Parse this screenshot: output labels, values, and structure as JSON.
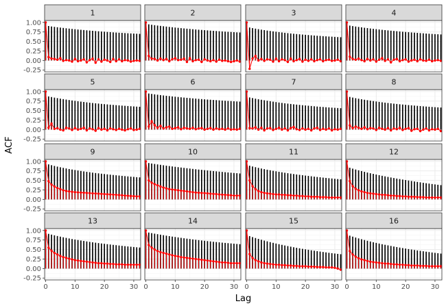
{
  "chart_data": {
    "type": "faceted-lollipop",
    "xlabel": "Lag",
    "ylabel": "ACF",
    "xlim": [
      0,
      32
    ],
    "ylim": [
      -0.3,
      1.05
    ],
    "x_ticks": [
      0,
      10,
      20,
      30
    ],
    "y_ticks": [
      -0.25,
      0,
      0.25,
      0.5,
      0.75,
      1
    ],
    "y_tick_labels": [
      "-0.25",
      "0.00",
      "0.25",
      "0.50",
      "0.75",
      "1.00"
    ],
    "x_tick_labels": [
      "0",
      "10",
      "20",
      "30"
    ],
    "grid": true,
    "colors": {
      "series_a": "#000000",
      "series_b": "#ff0000",
      "strip_bg": "#d9d9d9",
      "panel_border": "#333333",
      "grid_major": "#ebebeb",
      "grid_minor": "#f5f5f5"
    },
    "series_names": [
      "black",
      "red"
    ],
    "panels": [
      {
        "label": "1",
        "black": [
          1.0,
          0.906,
          0.894,
          0.883,
          0.873,
          0.864,
          0.855,
          0.846,
          0.838,
          0.83,
          0.822,
          0.814,
          0.807,
          0.8,
          0.793,
          0.786,
          0.78,
          0.773,
          0.767,
          0.761,
          0.756,
          0.75,
          0.745,
          0.739,
          0.734,
          0.729,
          0.725,
          0.72,
          0.715,
          0.711,
          0.707,
          0.703,
          0.699
        ],
        "red": [
          1.0,
          0.09,
          0.05,
          0.04,
          0.02,
          0.06,
          -0.01,
          0.01,
          0.0,
          -0.03,
          0.04,
          -0.02,
          0.0,
          0.03,
          -0.05,
          0.01,
          0.05,
          -0.06,
          0.03,
          -0.03,
          0.02,
          0.0,
          -0.04,
          0.04,
          -0.02,
          0.03,
          -0.02,
          0.01,
          0.0,
          -0.03,
          -0.01,
          0.0,
          -0.01
        ]
      },
      {
        "label": "2",
        "black": [
          1.0,
          0.95,
          0.939,
          0.928,
          0.918,
          0.909,
          0.9,
          0.891,
          0.882,
          0.874,
          0.865,
          0.858,
          0.85,
          0.843,
          0.836,
          0.829,
          0.822,
          0.815,
          0.809,
          0.803,
          0.797,
          0.791,
          0.785,
          0.779,
          0.774,
          0.768,
          0.763,
          0.758,
          0.753,
          0.749,
          0.744,
          0.739,
          0.735
        ],
        "red": [
          1.0,
          0.12,
          0.05,
          0.04,
          0.0,
          0.05,
          0.01,
          0.04,
          -0.02,
          0.03,
          0.06,
          0.01,
          0.02,
          0.05,
          -0.04,
          0.06,
          -0.02,
          0.01,
          0.02,
          -0.04,
          0.03,
          0.0,
          -0.02,
          0.01,
          -0.03,
          0.02,
          -0.01,
          0.0,
          -0.02,
          -0.04,
          -0.02,
          0.0,
          -0.03
        ]
      },
      {
        "label": "3",
        "black": [
          1.0,
          0.866,
          0.851,
          0.837,
          0.823,
          0.81,
          0.798,
          0.786,
          0.775,
          0.765,
          0.755,
          0.745,
          0.736,
          0.727,
          0.718,
          0.71,
          0.703,
          0.695,
          0.688,
          0.681,
          0.674,
          0.668,
          0.662,
          0.656,
          0.65,
          0.645,
          0.639,
          0.634,
          0.629,
          0.625,
          0.62,
          0.615,
          0.611
        ],
        "red": [
          1.0,
          -0.22,
          0.05,
          0.12,
          0.0,
          0.04,
          -0.01,
          0.03,
          0.02,
          -0.03,
          0.05,
          -0.02,
          0.03,
          0.01,
          -0.04,
          0.05,
          -0.02,
          0.01,
          0.04,
          -0.03,
          0.02,
          -0.01,
          0.03,
          -0.02,
          0.01,
          0.03,
          -0.02,
          0.01,
          0.02,
          -0.01,
          0.0,
          0.02,
          -0.02
        ]
      },
      {
        "label": "4",
        "black": [
          1.0,
          0.917,
          0.904,
          0.892,
          0.881,
          0.871,
          0.86,
          0.851,
          0.841,
          0.832,
          0.823,
          0.815,
          0.806,
          0.798,
          0.791,
          0.783,
          0.776,
          0.769,
          0.762,
          0.755,
          0.749,
          0.743,
          0.736,
          0.731,
          0.725,
          0.719,
          0.714,
          0.708,
          0.703,
          0.698,
          0.693,
          0.689,
          0.684
        ],
        "red": [
          1.0,
          0.1,
          0.04,
          0.02,
          0.05,
          0.01,
          -0.02,
          0.04,
          0.0,
          0.03,
          -0.03,
          0.02,
          0.06,
          -0.01,
          0.03,
          -0.05,
          0.02,
          0.04,
          -0.02,
          0.01,
          0.03,
          -0.03,
          0.0,
          0.02,
          -0.02,
          0.03,
          0.0,
          -0.01,
          0.02,
          -0.02,
          0.0,
          0.01,
          -0.01
        ]
      },
      {
        "label": "5",
        "black": [
          1.0,
          0.872,
          0.856,
          0.841,
          0.827,
          0.814,
          0.801,
          0.789,
          0.777,
          0.766,
          0.755,
          0.745,
          0.735,
          0.726,
          0.717,
          0.708,
          0.7,
          0.692,
          0.684,
          0.676,
          0.669,
          0.662,
          0.655,
          0.649,
          0.642,
          0.636,
          0.63,
          0.625,
          0.619,
          0.614,
          0.609,
          0.604,
          0.599
        ],
        "red": [
          1.0,
          0.05,
          0.16,
          0.02,
          0.04,
          0.0,
          -0.02,
          0.05,
          0.03,
          -0.01,
          0.04,
          0.0,
          0.02,
          0.05,
          -0.02,
          0.03,
          0.01,
          -0.03,
          0.04,
          0.0,
          0.02,
          -0.02,
          0.03,
          0.01,
          -0.01,
          0.02,
          0.0,
          -0.02,
          0.01,
          0.03,
          -0.01,
          0.0,
          0.02
        ]
      },
      {
        "label": "6",
        "black": [
          1.0,
          0.949,
          0.938,
          0.927,
          0.917,
          0.907,
          0.898,
          0.889,
          0.881,
          0.872,
          0.864,
          0.857,
          0.849,
          0.842,
          0.835,
          0.828,
          0.821,
          0.815,
          0.808,
          0.802,
          0.796,
          0.79,
          0.785,
          0.779,
          0.774,
          0.768,
          0.763,
          0.758,
          0.753,
          0.749,
          0.744,
          0.739,
          0.735
        ],
        "red": [
          1.0,
          0.08,
          0.22,
          0.12,
          0.05,
          0.1,
          0.03,
          0.06,
          0.08,
          0.02,
          0.04,
          0.06,
          0.01,
          0.05,
          0.03,
          0.02,
          0.05,
          0.01,
          0.03,
          0.04,
          0.0,
          0.02,
          0.04,
          0.0,
          0.03,
          0.01,
          0.02,
          0.0,
          0.03,
          0.0,
          0.01,
          0.0,
          0.02
        ]
      },
      {
        "label": "7",
        "black": [
          1.0,
          0.845,
          0.829,
          0.813,
          0.798,
          0.784,
          0.771,
          0.758,
          0.746,
          0.734,
          0.723,
          0.712,
          0.702,
          0.692,
          0.683,
          0.674,
          0.665,
          0.657,
          0.649,
          0.641,
          0.634,
          0.627,
          0.62,
          0.613,
          0.606,
          0.6,
          0.594,
          0.588,
          0.583,
          0.577,
          0.572,
          0.567,
          0.562
        ],
        "red": [
          1.0,
          0.04,
          0.03,
          0.06,
          0.0,
          0.05,
          -0.02,
          0.03,
          0.04,
          -0.01,
          0.02,
          0.05,
          0.0,
          0.03,
          -0.02,
          0.04,
          0.07,
          0.01,
          -0.01,
          0.03,
          0.0,
          0.02,
          -0.02,
          0.03,
          0.05,
          -0.01,
          0.02,
          0.0,
          0.03,
          -0.02,
          0.01,
          0.0,
          0.02
        ]
      },
      {
        "label": "8",
        "black": [
          1.0,
          0.858,
          0.842,
          0.826,
          0.812,
          0.798,
          0.785,
          0.773,
          0.761,
          0.75,
          0.739,
          0.728,
          0.718,
          0.709,
          0.7,
          0.691,
          0.682,
          0.674,
          0.666,
          0.659,
          0.651,
          0.644,
          0.637,
          0.631,
          0.624,
          0.618,
          0.612,
          0.606,
          0.601,
          0.595,
          0.59,
          0.585,
          0.58
        ],
        "red": [
          1.0,
          0.11,
          0.04,
          0.08,
          0.05,
          0.02,
          0.06,
          0.01,
          0.04,
          0.03,
          -0.01,
          0.05,
          0.02,
          0.0,
          0.04,
          -0.02,
          0.03,
          0.01,
          0.05,
          -0.01,
          0.02,
          0.04,
          -0.03,
          0.01,
          0.02,
          -0.04,
          0.0,
          0.03,
          -0.02,
          0.01,
          0.0,
          0.02,
          -0.04
        ]
      },
      {
        "label": "9",
        "black": [
          1.0,
          0.921,
          0.9,
          0.88,
          0.862,
          0.845,
          0.829,
          0.814,
          0.799,
          0.786,
          0.772,
          0.76,
          0.748,
          0.736,
          0.725,
          0.715,
          0.704,
          0.694,
          0.685,
          0.676,
          0.667,
          0.658,
          0.65,
          0.642,
          0.634,
          0.627,
          0.619,
          0.612,
          0.605,
          0.598,
          0.592,
          0.585,
          0.579
        ],
        "red": [
          1.0,
          0.48,
          0.39,
          0.34,
          0.3,
          0.27,
          0.24,
          0.22,
          0.21,
          0.2,
          0.19,
          0.185,
          0.18,
          0.175,
          0.17,
          0.165,
          0.16,
          0.155,
          0.15,
          0.145,
          0.14,
          0.135,
          0.13,
          0.125,
          0.12,
          0.115,
          0.11,
          0.1,
          0.095,
          0.09,
          0.085,
          0.08,
          0.08
        ]
      },
      {
        "label": "10",
        "black": [
          1.0,
          0.956,
          0.944,
          0.932,
          0.92,
          0.909,
          0.898,
          0.887,
          0.877,
          0.867,
          0.857,
          0.848,
          0.838,
          0.829,
          0.82,
          0.811,
          0.802,
          0.793,
          0.785,
          0.777,
          0.769,
          0.761,
          0.753,
          0.745,
          0.738,
          0.73,
          0.723,
          0.716,
          0.709,
          0.702,
          0.695,
          0.689,
          0.682
        ],
        "red": [
          1.0,
          0.5,
          0.44,
          0.4,
          0.37,
          0.34,
          0.31,
          0.29,
          0.27,
          0.26,
          0.25,
          0.24,
          0.23,
          0.22,
          0.21,
          0.2,
          0.19,
          0.18,
          0.175,
          0.17,
          0.165,
          0.16,
          0.15,
          0.145,
          0.14,
          0.13,
          0.125,
          0.12,
          0.115,
          0.11,
          0.1,
          0.1,
          0.1
        ]
      },
      {
        "label": "11",
        "black": [
          1.0,
          0.886,
          0.866,
          0.847,
          0.829,
          0.812,
          0.796,
          0.781,
          0.766,
          0.752,
          0.739,
          0.726,
          0.713,
          0.701,
          0.689,
          0.678,
          0.667,
          0.656,
          0.646,
          0.636,
          0.626,
          0.617,
          0.608,
          0.599,
          0.59,
          0.582,
          0.573,
          0.565,
          0.557,
          0.55,
          0.542,
          0.535,
          0.528
        ],
        "red": [
          1.0,
          0.5,
          0.35,
          0.27,
          0.22,
          0.19,
          0.17,
          0.16,
          0.15,
          0.14,
          0.13,
          0.13,
          0.12,
          0.12,
          0.11,
          0.11,
          0.1,
          0.1,
          0.09,
          0.09,
          0.08,
          0.08,
          0.07,
          0.07,
          0.07,
          0.06,
          0.06,
          0.06,
          0.05,
          0.05,
          0.05,
          0.05,
          0.05
        ]
      },
      {
        "label": "12",
        "black": [
          1.0,
          0.832,
          0.809,
          0.786,
          0.765,
          0.745,
          0.725,
          0.706,
          0.688,
          0.671,
          0.654,
          0.637,
          0.621,
          0.606,
          0.591,
          0.576,
          0.562,
          0.548,
          0.535,
          0.522,
          0.509,
          0.496,
          0.484,
          0.472,
          0.46,
          0.449,
          0.437,
          0.426,
          0.416,
          0.405,
          0.395,
          0.385,
          0.375
        ],
        "red": [
          1.0,
          0.48,
          0.35,
          0.28,
          0.24,
          0.21,
          0.19,
          0.17,
          0.16,
          0.15,
          0.14,
          0.13,
          0.12,
          0.12,
          0.11,
          0.1,
          0.1,
          0.09,
          0.09,
          0.08,
          0.08,
          0.07,
          0.07,
          0.07,
          0.06,
          0.06,
          0.06,
          0.05,
          0.05,
          0.05,
          0.05,
          0.05,
          0.05
        ]
      },
      {
        "label": "13",
        "black": [
          1.0,
          0.912,
          0.892,
          0.873,
          0.855,
          0.838,
          0.821,
          0.806,
          0.791,
          0.776,
          0.763,
          0.75,
          0.737,
          0.725,
          0.713,
          0.701,
          0.69,
          0.68,
          0.669,
          0.659,
          0.65,
          0.64,
          0.631,
          0.622,
          0.614,
          0.605,
          0.597,
          0.589,
          0.581,
          0.574,
          0.566,
          0.559,
          0.552
        ],
        "red": [
          1.0,
          0.55,
          0.47,
          0.41,
          0.37,
          0.33,
          0.3,
          0.28,
          0.26,
          0.24,
          0.22,
          0.21,
          0.2,
          0.19,
          0.18,
          0.17,
          0.16,
          0.15,
          0.14,
          0.14,
          0.13,
          0.13,
          0.12,
          0.12,
          0.11,
          0.11,
          0.11,
          0.1,
          0.1,
          0.1,
          0.1,
          0.1,
          0.1
        ]
      },
      {
        "label": "14",
        "black": [
          1.0,
          0.946,
          0.931,
          0.917,
          0.903,
          0.89,
          0.877,
          0.864,
          0.852,
          0.84,
          0.829,
          0.818,
          0.807,
          0.796,
          0.786,
          0.776,
          0.766,
          0.757,
          0.747,
          0.738,
          0.73,
          0.721,
          0.713,
          0.704,
          0.697,
          0.689,
          0.681,
          0.674,
          0.667,
          0.66,
          0.653,
          0.646,
          0.64
        ],
        "red": [
          1.0,
          0.62,
          0.55,
          0.5,
          0.46,
          0.43,
          0.41,
          0.39,
          0.37,
          0.35,
          0.33,
          0.32,
          0.3,
          0.29,
          0.28,
          0.27,
          0.26,
          0.25,
          0.24,
          0.23,
          0.22,
          0.21,
          0.2,
          0.19,
          0.18,
          0.17,
          0.16,
          0.16,
          0.15,
          0.14,
          0.14,
          0.14,
          0.14
        ]
      },
      {
        "label": "15",
        "black": [
          1.0,
          0.853,
          0.827,
          0.803,
          0.779,
          0.757,
          0.735,
          0.715,
          0.695,
          0.676,
          0.657,
          0.64,
          0.623,
          0.606,
          0.59,
          0.575,
          0.56,
          0.546,
          0.532,
          0.518,
          0.505,
          0.493,
          0.48,
          0.469,
          0.457,
          0.446,
          0.435,
          0.425,
          0.414,
          0.404,
          0.395,
          0.385,
          0.376
        ],
        "red": [
          1.0,
          0.38,
          0.28,
          0.22,
          0.19,
          0.16,
          0.14,
          0.13,
          0.12,
          0.11,
          0.1,
          0.1,
          0.09,
          0.09,
          0.08,
          0.08,
          0.07,
          0.07,
          0.06,
          0.06,
          0.06,
          0.05,
          0.05,
          0.05,
          0.04,
          0.04,
          0.04,
          0.03,
          0.03,
          0.03,
          0.02,
          0.0,
          -0.03
        ]
      },
      {
        "label": "16",
        "black": [
          1.0,
          0.864,
          0.839,
          0.815,
          0.792,
          0.771,
          0.75,
          0.73,
          0.711,
          0.692,
          0.674,
          0.657,
          0.64,
          0.624,
          0.609,
          0.594,
          0.579,
          0.565,
          0.551,
          0.538,
          0.525,
          0.512,
          0.5,
          0.488,
          0.476,
          0.465,
          0.454,
          0.443,
          0.433,
          0.422,
          0.412,
          0.403,
          0.393
        ],
        "red": [
          1.0,
          0.46,
          0.37,
          0.31,
          0.27,
          0.24,
          0.22,
          0.2,
          0.18,
          0.17,
          0.16,
          0.15,
          0.14,
          0.13,
          0.13,
          0.12,
          0.11,
          0.11,
          0.1,
          0.1,
          0.09,
          0.09,
          0.08,
          0.08,
          0.08,
          0.07,
          0.07,
          0.07,
          0.06,
          0.06,
          0.06,
          0.06,
          0.06
        ]
      }
    ]
  }
}
